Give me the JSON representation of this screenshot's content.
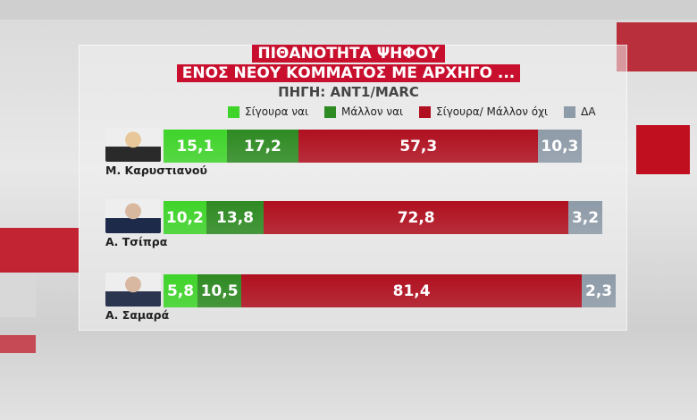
{
  "title_lines": [
    "ΠΙΘΑΝΟΤΗΤΑ ΨΗΦΟΥ",
    "ΕΝΟΣ ΝΕΟΥ ΚΟΜΜΑΤΟΣ ΜΕ ΑΡΧΗΓΟ ..."
  ],
  "source": "ΠΗΓΗ: ΑΝΤ1/MARC",
  "chart_data": {
    "type": "bar",
    "orientation": "horizontal-stacked",
    "title": "ΠΙΘΑΝΟΤΗΤΑ ΨΗΦΟΥ ΕΝΟΣ ΝΕΟΥ ΚΟΜΜΑΤΟΣ ΜΕ ΑΡΧΗΓΟ ...",
    "legend_position": "top",
    "categories": [
      "Μ. Καρυστιανού",
      "Α. Τσίπρα",
      "Α. Σαμαρά"
    ],
    "series": [
      {
        "name": "Σίγουρα ναι",
        "color": "#3fd42a",
        "values": [
          15.1,
          10.2,
          5.8
        ],
        "labels": [
          "15,1",
          "10,2",
          "5,8"
        ]
      },
      {
        "name": "Μάλλον ναι",
        "color": "#2e8a22",
        "values": [
          17.2,
          13.8,
          10.5
        ],
        "labels": [
          "17,2",
          "13,8",
          "10,5"
        ]
      },
      {
        "name": "Σίγουρα/ Μάλλον όχι",
        "color": "#b0101f",
        "values": [
          57.3,
          72.8,
          81.4
        ],
        "labels": [
          "57,3",
          "72,8",
          "81,4"
        ]
      },
      {
        "name": "ΔΑ",
        "color": "#8e9ba8",
        "values": [
          10.3,
          3.2,
          2.3
        ],
        "labels": [
          "10,3",
          "3,2",
          "2,3"
        ]
      }
    ]
  }
}
